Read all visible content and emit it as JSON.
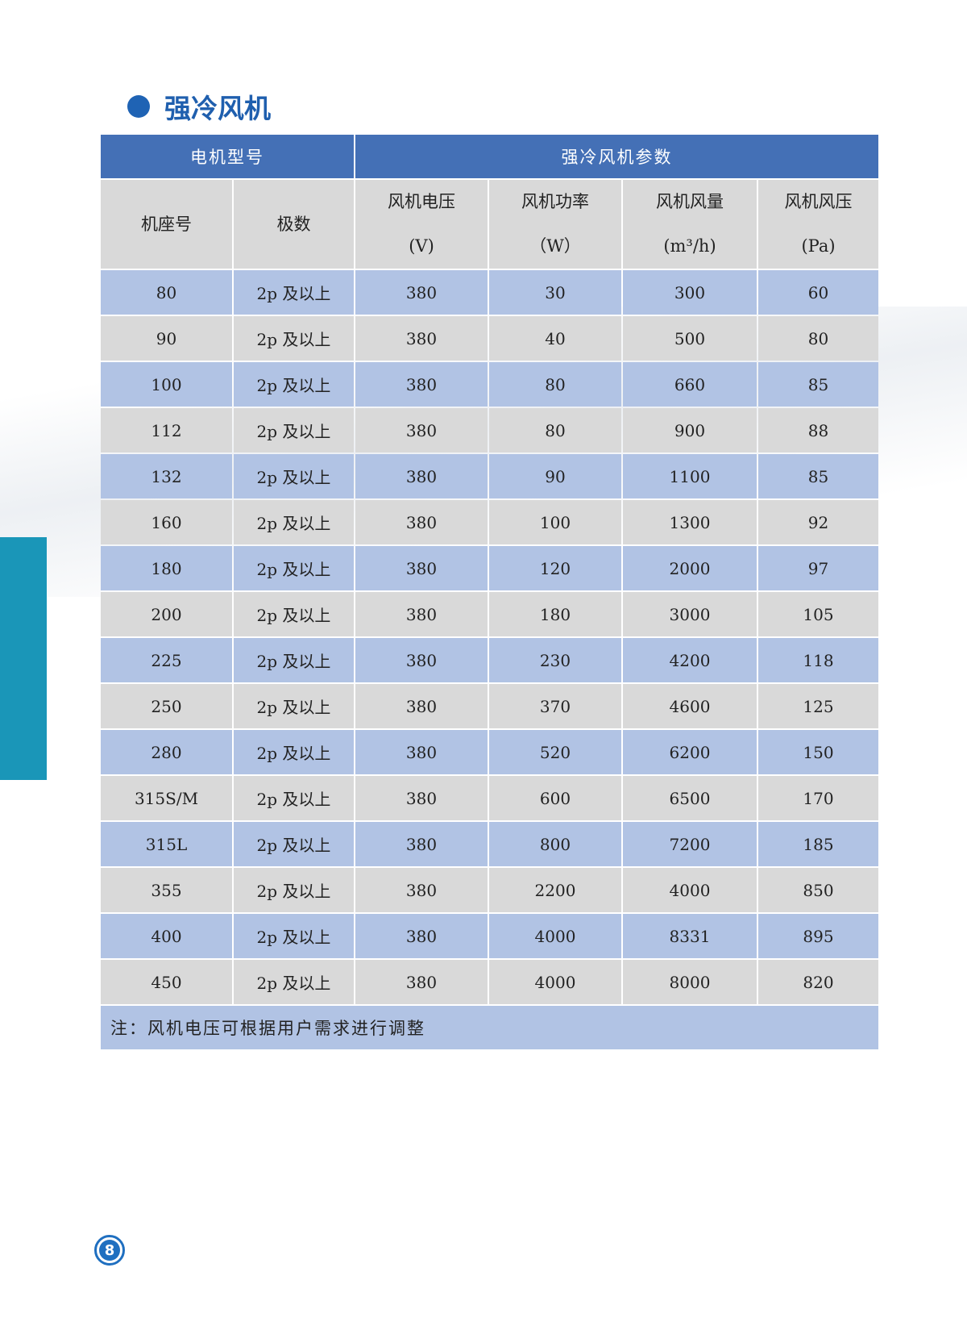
{
  "title": "强冷风机",
  "table": {
    "group_headers": [
      "电机型号",
      "强冷风机参数"
    ],
    "columns": [
      {
        "label": "机座号",
        "unit": ""
      },
      {
        "label": "极数",
        "unit": ""
      },
      {
        "label": "风机电压",
        "unit": "(V)"
      },
      {
        "label": "风机功率",
        "unit": "（W）"
      },
      {
        "label": "风机风量",
        "unit": "(m³/h)"
      },
      {
        "label": "风机风压",
        "unit": "(Pa)"
      }
    ],
    "rows": [
      [
        "80",
        "2p 及以上",
        "380",
        "30",
        "300",
        "60"
      ],
      [
        "90",
        "2p 及以上",
        "380",
        "40",
        "500",
        "80"
      ],
      [
        "100",
        "2p 及以上",
        "380",
        "80",
        "660",
        "85"
      ],
      [
        "112",
        "2p 及以上",
        "380",
        "80",
        "900",
        "88"
      ],
      [
        "132",
        "2p 及以上",
        "380",
        "90",
        "1100",
        "85"
      ],
      [
        "160",
        "2p 及以上",
        "380",
        "100",
        "1300",
        "92"
      ],
      [
        "180",
        "2p 及以上",
        "380",
        "120",
        "2000",
        "97"
      ],
      [
        "200",
        "2p 及以上",
        "380",
        "180",
        "3000",
        "105"
      ],
      [
        "225",
        "2p 及以上",
        "380",
        "230",
        "4200",
        "118"
      ],
      [
        "250",
        "2p 及以上",
        "380",
        "370",
        "4600",
        "125"
      ],
      [
        "280",
        "2p 及以上",
        "380",
        "520",
        "6200",
        "150"
      ],
      [
        "315S/M",
        "2p 及以上",
        "380",
        "600",
        "6500",
        "170"
      ],
      [
        "315L",
        "2p 及以上",
        "380",
        "800",
        "7200",
        "185"
      ],
      [
        "355",
        "2p 及以上",
        "380",
        "2200",
        "4000",
        "850"
      ],
      [
        "400",
        "2p 及以上",
        "380",
        "4000",
        "8331",
        "895"
      ],
      [
        "450",
        "2p 及以上",
        "380",
        "4000",
        "8000",
        "820"
      ]
    ],
    "note": "注：风机电压可根据用户需求进行调整"
  },
  "page_number": "8",
  "colors": {
    "header": "#4470b6",
    "row_blue": "#b1c3e4",
    "row_gray": "#d9d9d9",
    "title": "#1f5fae",
    "sidebar": "#1a96b8"
  }
}
